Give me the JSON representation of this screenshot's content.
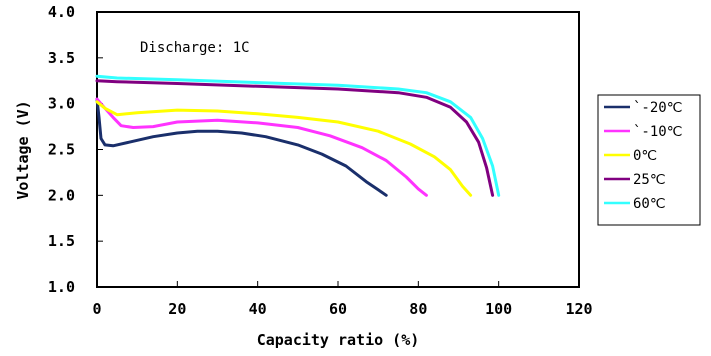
{
  "chart_data": {
    "type": "line",
    "xlabel": "Capacity ratio (%)",
    "ylabel": "Voltage (V)",
    "annotation": "Discharge: 1C",
    "xlim": [
      0,
      120
    ],
    "ylim": [
      1.0,
      4.0
    ],
    "xticks": [
      "0",
      "20",
      "40",
      "60",
      "80",
      "100",
      "120"
    ],
    "yticks": [
      "1.0",
      "1.5",
      "2.0",
      "2.5",
      "3.0",
      "3.5",
      "4.0"
    ],
    "grid": false,
    "legend_position": "right",
    "series": [
      {
        "name": "`-20℃",
        "color": "#1a2f6b",
        "points": [
          [
            0,
            3.05
          ],
          [
            0.5,
            2.85
          ],
          [
            1,
            2.62
          ],
          [
            2,
            2.55
          ],
          [
            4,
            2.54
          ],
          [
            8,
            2.58
          ],
          [
            14,
            2.64
          ],
          [
            20,
            2.68
          ],
          [
            25,
            2.7
          ],
          [
            30,
            2.7
          ],
          [
            36,
            2.68
          ],
          [
            42,
            2.64
          ],
          [
            50,
            2.55
          ],
          [
            56,
            2.45
          ],
          [
            62,
            2.32
          ],
          [
            67,
            2.15
          ],
          [
            70,
            2.06
          ],
          [
            72,
            2.0
          ]
        ]
      },
      {
        "name": "`-10℃",
        "color": "#ff33ff",
        "points": [
          [
            0,
            3.05
          ],
          [
            2,
            2.95
          ],
          [
            4,
            2.85
          ],
          [
            6,
            2.76
          ],
          [
            9,
            2.74
          ],
          [
            14,
            2.75
          ],
          [
            20,
            2.8
          ],
          [
            30,
            2.82
          ],
          [
            40,
            2.79
          ],
          [
            50,
            2.74
          ],
          [
            58,
            2.65
          ],
          [
            66,
            2.52
          ],
          [
            72,
            2.38
          ],
          [
            77,
            2.2
          ],
          [
            80,
            2.07
          ],
          [
            82,
            2.0
          ]
        ]
      },
      {
        "name": "0℃",
        "color": "#ffff00",
        "points": [
          [
            0,
            3.02
          ],
          [
            2,
            2.95
          ],
          [
            5,
            2.88
          ],
          [
            10,
            2.9
          ],
          [
            20,
            2.93
          ],
          [
            30,
            2.92
          ],
          [
            40,
            2.89
          ],
          [
            50,
            2.85
          ],
          [
            60,
            2.8
          ],
          [
            70,
            2.7
          ],
          [
            78,
            2.56
          ],
          [
            84,
            2.42
          ],
          [
            88,
            2.28
          ],
          [
            91,
            2.1
          ],
          [
            93,
            2.0
          ]
        ]
      },
      {
        "name": "25℃",
        "color": "#800080",
        "points": [
          [
            0,
            3.25
          ],
          [
            5,
            3.24
          ],
          [
            20,
            3.22
          ],
          [
            40,
            3.19
          ],
          [
            60,
            3.16
          ],
          [
            75,
            3.12
          ],
          [
            82,
            3.07
          ],
          [
            88,
            2.96
          ],
          [
            92,
            2.8
          ],
          [
            95,
            2.58
          ],
          [
            97,
            2.3
          ],
          [
            98.5,
            2.0
          ]
        ]
      },
      {
        "name": "60℃",
        "color": "#33ffff",
        "points": [
          [
            0,
            3.3
          ],
          [
            5,
            3.28
          ],
          [
            20,
            3.26
          ],
          [
            40,
            3.23
          ],
          [
            60,
            3.2
          ],
          [
            75,
            3.16
          ],
          [
            82,
            3.12
          ],
          [
            88,
            3.02
          ],
          [
            93,
            2.85
          ],
          [
            96,
            2.62
          ],
          [
            98.5,
            2.32
          ],
          [
            100,
            2.0
          ]
        ]
      }
    ]
  }
}
